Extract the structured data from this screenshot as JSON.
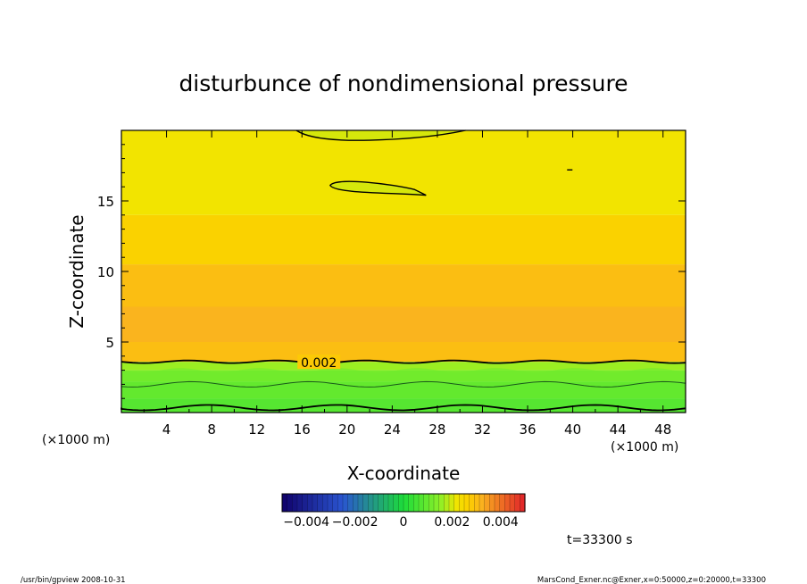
{
  "chart_data": {
    "type": "heatmap",
    "title": "disturbunce of nondimensional pressure",
    "xlabel": "X-coordinate",
    "ylabel": "Z-coordinate",
    "x_unit_left": "(×1000 m)",
    "x_unit_right": "(×1000 m)",
    "xlim": [
      0,
      50
    ],
    "ylim": [
      0,
      20
    ],
    "x_ticks": [
      4,
      8,
      12,
      16,
      20,
      24,
      28,
      32,
      36,
      40,
      44,
      48
    ],
    "y_ticks": [
      5,
      10,
      15
    ],
    "contour_labels": [
      {
        "x": 17.5,
        "z": 3.6,
        "text": "0.002"
      }
    ],
    "colorbar": {
      "tick_labels": [
        "−0.004",
        "−0.002",
        "0",
        "0.002",
        "0.004"
      ],
      "tick_values": [
        -0.004,
        -0.002,
        0,
        0.002,
        0.004
      ],
      "range": [
        -0.005,
        0.005
      ]
    },
    "field_bands": [
      {
        "z_from": 0.0,
        "z_to": 1.0,
        "value": 0.0004
      },
      {
        "z_from": 1.0,
        "z_to": 2.2,
        "value": 0.0008
      },
      {
        "z_from": 2.2,
        "z_to": 3.0,
        "value": 0.0012
      },
      {
        "z_from": 3.0,
        "z_to": 3.6,
        "value": 0.0016
      },
      {
        "z_from": 3.6,
        "z_to": 5.0,
        "value": 0.003
      },
      {
        "z_from": 5.0,
        "z_to": 7.5,
        "value": 0.0032
      },
      {
        "z_from": 7.5,
        "z_to": 10.5,
        "value": 0.003
      },
      {
        "z_from": 10.5,
        "z_to": 14.0,
        "value": 0.0026
      },
      {
        "z_from": 14.0,
        "z_to": 20.0,
        "value": 0.0022
      }
    ],
    "time_label": "t=33300 s"
  },
  "footer": {
    "left": "/usr/bin/gpview  2008-10-31",
    "right": "MarsCond_Exner.nc@Exner,x=0:50000,z=0:20000,t=33300"
  },
  "colors": {
    "axis": "#000000",
    "cb_neg_far": "#10006a",
    "cb_neg": "#2a55d0",
    "cb_zero": "#1cdc3a",
    "cb_pos": "#f2e400",
    "cb_pos_far": "#e0202a"
  }
}
